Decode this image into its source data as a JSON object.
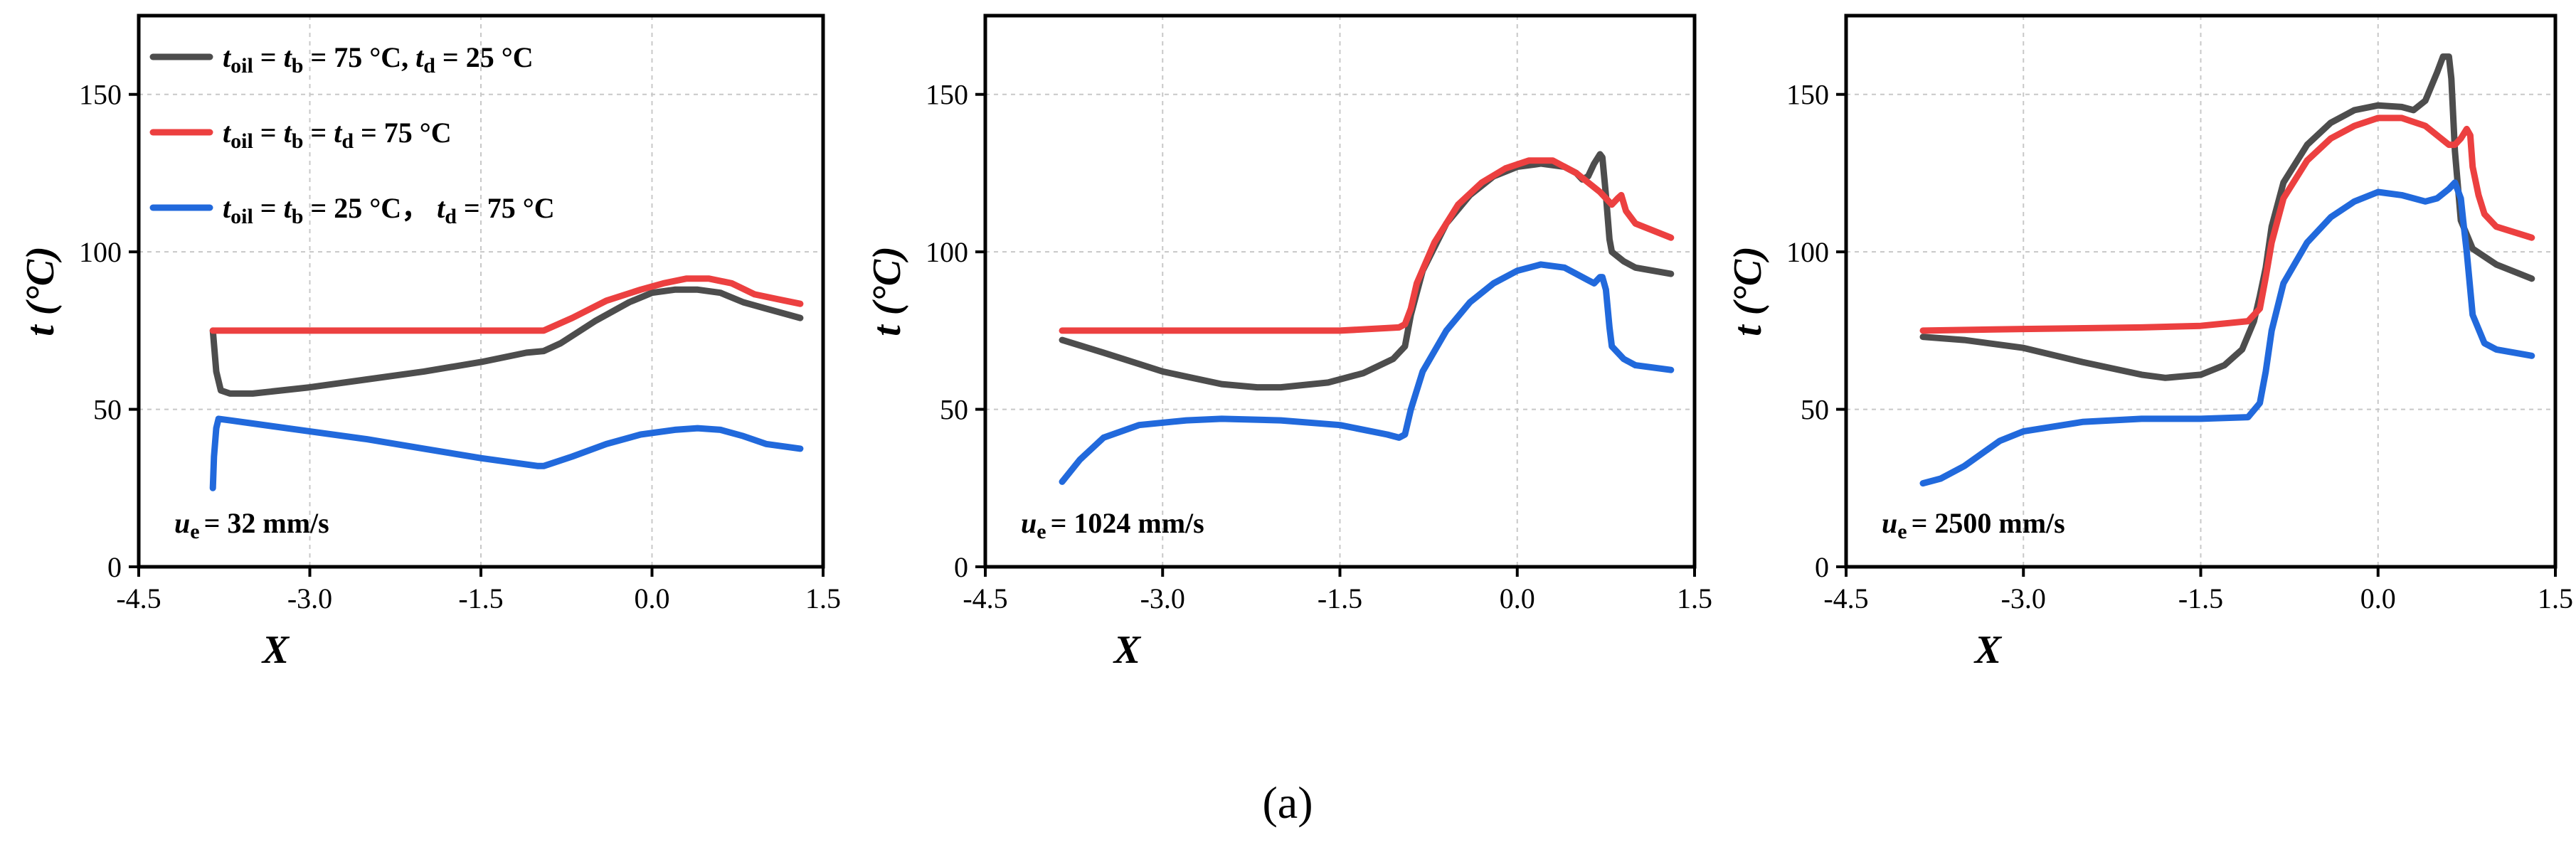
{
  "figure": {
    "caption": "(a)"
  },
  "colors": {
    "series_0": "#4d4d4d",
    "series_1": "#ec4040",
    "series_2": "#2169dc"
  },
  "chart_data": [
    {
      "type": "line",
      "xlabel": "X",
      "ylabel": "t (°C)",
      "xlim": [
        -4.5,
        1.5
      ],
      "ylim": [
        0,
        175
      ],
      "xticks": [
        "-4.5",
        "-3.0",
        "-1.5",
        "0.0",
        "1.5"
      ],
      "yticks": [
        "0",
        "50",
        "100",
        "150"
      ],
      "grid": true,
      "annotation": {
        "var": "u",
        "sub": "e",
        "text": "= 32 mm/s"
      },
      "legend": {
        "position": "top-left",
        "entries": [
          {
            "runs": [
              [
                "t",
                "i"
              ],
              [
                "oil",
                "s"
              ],
              [
                " = ",
                "n"
              ],
              [
                "t",
                "i"
              ],
              [
                "b",
                "s"
              ],
              [
                " = 75 °C, ",
                "n"
              ],
              [
                "t",
                "i"
              ],
              [
                "d",
                "s"
              ],
              [
                " = 25 °C",
                "n"
              ]
            ]
          },
          {
            "runs": [
              [
                "t",
                "i"
              ],
              [
                "oil",
                "s"
              ],
              [
                " = ",
                "n"
              ],
              [
                "t",
                "i"
              ],
              [
                "b",
                "s"
              ],
              [
                " = ",
                "n"
              ],
              [
                "t",
                "i"
              ],
              [
                "d",
                "s"
              ],
              [
                " = 75 °C",
                "n"
              ]
            ]
          },
          {
            "runs": [
              [
                "t",
                "i"
              ],
              [
                "oil",
                "s"
              ],
              [
                " = ",
                "n"
              ],
              [
                "t",
                "i"
              ],
              [
                "b",
                "s"
              ],
              [
                " = 25 °C， ",
                "n"
              ],
              [
                "t",
                "i"
              ],
              [
                "d",
                "s"
              ],
              [
                " = 75 °C",
                "n"
              ]
            ]
          }
        ]
      },
      "series": [
        {
          "name": "t_oil = t_b = 75 °C, t_d = 25 °C",
          "x": [
            -3.85,
            -3.82,
            -3.78,
            -3.7,
            -3.5,
            -3.0,
            -2.5,
            -2.0,
            -1.5,
            -1.1,
            -0.95,
            -0.8,
            -0.5,
            -0.2,
            0.0,
            0.2,
            0.4,
            0.6,
            0.8,
            1.0,
            1.3
          ],
          "y": [
            75,
            62,
            56,
            55,
            55,
            57,
            59.5,
            62,
            65,
            68,
            68.5,
            71,
            78,
            84,
            87,
            88,
            88,
            87,
            84,
            82,
            79
          ]
        },
        {
          "name": "t_oil = t_b = t_d = 75 °C",
          "x": [
            -3.85,
            -3.5,
            -3.0,
            -2.0,
            -1.5,
            -1.0,
            -0.95,
            -0.7,
            -0.4,
            -0.1,
            0.1,
            0.3,
            0.5,
            0.7,
            0.9,
            1.1,
            1.3
          ],
          "y": [
            75,
            75,
            75,
            75,
            75,
            75,
            75,
            79,
            84.5,
            88,
            90,
            91.5,
            91.5,
            90,
            86.5,
            85,
            83.5
          ]
        },
        {
          "name": "t_oil = t_b = 25 °C, t_d = 75 °C",
          "x": [
            -3.85,
            -3.84,
            -3.82,
            -3.8,
            -3.7,
            -3.5,
            -3.0,
            -2.5,
            -2.0,
            -1.5,
            -1.0,
            -0.95,
            -0.7,
            -0.4,
            -0.1,
            0.2,
            0.4,
            0.6,
            0.8,
            1.0,
            1.3
          ],
          "y": [
            25,
            35,
            44,
            47,
            46.5,
            45.5,
            43,
            40.5,
            37.5,
            34.5,
            32,
            32,
            35,
            39,
            42,
            43.5,
            44,
            43.5,
            41.5,
            39,
            37.5
          ]
        }
      ]
    },
    {
      "type": "line",
      "xlabel": "X",
      "ylabel": "t (°C)",
      "xlim": [
        -4.5,
        1.5
      ],
      "ylim": [
        0,
        175
      ],
      "xticks": [
        "-4.5",
        "-3.0",
        "-1.5",
        "0.0",
        "1.5"
      ],
      "yticks": [
        "0",
        "50",
        "100",
        "150"
      ],
      "grid": true,
      "annotation": {
        "var": "u",
        "sub": "e",
        "text": "= 1024 mm/s"
      },
      "series": [
        {
          "name": "t_oil = t_b = 75 °C, t_d = 25 °C",
          "x": [
            -3.85,
            -3.5,
            -3.0,
            -2.5,
            -2.2,
            -2.0,
            -1.6,
            -1.3,
            -1.05,
            -0.95,
            -0.9,
            -0.8,
            -0.6,
            -0.4,
            -0.2,
            0.0,
            0.2,
            0.4,
            0.5,
            0.55,
            0.6,
            0.65,
            0.7,
            0.72,
            0.75,
            0.78,
            0.8,
            0.9,
            1.0,
            1.3
          ],
          "y": [
            72,
            68,
            62,
            58,
            57,
            57,
            58.5,
            61.5,
            66,
            70,
            80,
            94,
            109,
            118,
            124,
            127,
            128,
            127,
            125,
            123,
            124,
            128,
            131,
            130,
            118,
            104,
            100,
            97,
            95,
            93
          ]
        },
        {
          "name": "t_oil = t_b = t_d = 75 °C",
          "x": [
            -3.85,
            -3.0,
            -2.0,
            -1.5,
            -1.0,
            -0.95,
            -0.9,
            -0.85,
            -0.7,
            -0.5,
            -0.3,
            -0.1,
            0.1,
            0.3,
            0.5,
            0.7,
            0.8,
            0.85,
            0.88,
            0.92,
            1.0,
            1.3
          ],
          "y": [
            75,
            75,
            75,
            75,
            76,
            77,
            82,
            90,
            103,
            115,
            122,
            126.5,
            129,
            129,
            125,
            119,
            115,
            117,
            118,
            113,
            109,
            104.5
          ]
        },
        {
          "name": "t_oil = t_b = 25 °C, t_d = 75 °C",
          "x": [
            -3.85,
            -3.7,
            -3.5,
            -3.2,
            -2.8,
            -2.5,
            -2.0,
            -1.5,
            -1.1,
            -1.0,
            -0.95,
            -0.9,
            -0.8,
            -0.6,
            -0.4,
            -0.2,
            0.0,
            0.2,
            0.4,
            0.5,
            0.6,
            0.65,
            0.7,
            0.72,
            0.75,
            0.78,
            0.8,
            0.9,
            1.0,
            1.3
          ],
          "y": [
            27,
            34,
            41,
            45,
            46.5,
            47,
            46.5,
            45,
            42,
            41,
            42,
            50,
            62,
            75,
            84,
            90,
            94,
            96,
            95,
            93,
            91,
            90,
            92,
            92,
            88,
            76,
            70,
            66,
            64,
            62.5
          ]
        }
      ]
    },
    {
      "type": "line",
      "xlabel": "X",
      "ylabel": "t (°C)",
      "xlim": [
        -4.5,
        1.5
      ],
      "ylim": [
        0,
        175
      ],
      "xticks": [
        "-4.5",
        "-3.0",
        "-1.5",
        "0.0",
        "1.5"
      ],
      "yticks": [
        "0",
        "50",
        "100",
        "150"
      ],
      "grid": true,
      "annotation": {
        "var": "u",
        "sub": "e",
        "text": "= 2500 mm/s"
      },
      "series": [
        {
          "name": "t_oil = t_b = 75 °C, t_d = 25 °C",
          "x": [
            -3.85,
            -3.5,
            -3.0,
            -2.5,
            -2.0,
            -1.8,
            -1.5,
            -1.3,
            -1.15,
            -1.05,
            -1.0,
            -0.95,
            -0.9,
            -0.8,
            -0.6,
            -0.4,
            -0.2,
            0.0,
            0.2,
            0.3,
            0.4,
            0.5,
            0.55,
            0.6,
            0.62,
            0.65,
            0.7,
            0.8,
            1.0,
            1.3
          ],
          "y": [
            73,
            72,
            69.5,
            65,
            61,
            60,
            61,
            64,
            69,
            78,
            86,
            95,
            108,
            122,
            134,
            141,
            145,
            146.5,
            146,
            145,
            148,
            157,
            162,
            162,
            155,
            132,
            110,
            101,
            96,
            91.5
          ]
        },
        {
          "name": "t_oil = t_b = t_d = 75 °C",
          "x": [
            -3.85,
            -3.0,
            -2.0,
            -1.5,
            -1.1,
            -1.0,
            -0.95,
            -0.9,
            -0.8,
            -0.6,
            -0.4,
            -0.2,
            0.0,
            0.2,
            0.4,
            0.5,
            0.6,
            0.65,
            0.7,
            0.75,
            0.78,
            0.8,
            0.85,
            0.9,
            1.0,
            1.3
          ],
          "y": [
            75,
            75.5,
            76,
            76.5,
            78,
            82,
            92,
            103,
            117,
            129,
            136,
            140,
            142.5,
            142.5,
            140,
            137,
            134,
            134,
            136,
            139,
            137,
            127,
            118,
            112,
            108,
            104.5
          ]
        },
        {
          "name": "t_oil = t_b = 25 °C, t_d = 75 °C",
          "x": [
            -3.85,
            -3.7,
            -3.5,
            -3.2,
            -3.0,
            -2.5,
            -2.0,
            -1.5,
            -1.1,
            -1.0,
            -0.95,
            -0.9,
            -0.8,
            -0.6,
            -0.4,
            -0.2,
            0.0,
            0.2,
            0.4,
            0.5,
            0.6,
            0.65,
            0.7,
            0.72,
            0.75,
            0.8,
            0.9,
            1.0,
            1.3
          ],
          "y": [
            26.5,
            28,
            32,
            40,
            43,
            46,
            47,
            47,
            47.5,
            52,
            62,
            75,
            90,
            103,
            111,
            116,
            119,
            118,
            116,
            117,
            120,
            122,
            117,
            110,
            100,
            80,
            71,
            69,
            67
          ]
        }
      ]
    }
  ]
}
